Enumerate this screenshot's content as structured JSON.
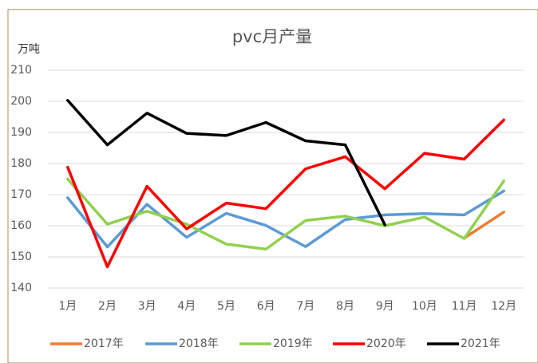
{
  "chart_data": {
    "type": "line",
    "title": "pvc月产量",
    "y_label": "万吨",
    "categories": [
      "1月",
      "2月",
      "3月",
      "4月",
      "5月",
      "6月",
      "7月",
      "8月",
      "9月",
      "10月",
      "11月",
      "12月"
    ],
    "series": [
      {
        "name": "2017年",
        "color": "#ed7d31",
        "values": [
          null,
          null,
          null,
          null,
          null,
          null,
          null,
          null,
          null,
          null,
          156,
          164.4
        ]
      },
      {
        "name": "2018年",
        "color": "#5b9bd5",
        "values": [
          169,
          153.2,
          166.9,
          156.3,
          164,
          160.1,
          153.3,
          162,
          163.5,
          163.9,
          163.5,
          171.2
        ]
      },
      {
        "name": "2019年",
        "color": "#92d050",
        "values": [
          175,
          160.5,
          164.7,
          160.5,
          154.1,
          152.5,
          161.7,
          163.1,
          160,
          162.8,
          155.9,
          174.4
        ]
      },
      {
        "name": "2020年",
        "color": "#ff0000",
        "values": [
          178.8,
          146.8,
          172.7,
          159,
          167.3,
          165.5,
          178.3,
          182.2,
          171.9,
          183.3,
          181.4,
          194
        ]
      },
      {
        "name": "2021年",
        "color": "#000000",
        "values": [
          200.3,
          186,
          196.2,
          189.7,
          189,
          193.2,
          187.3,
          186,
          160.3,
          null,
          null,
          null
        ]
      }
    ],
    "ylim": [
      140,
      210
    ],
    "yticks": [
      140,
      150,
      160,
      170,
      180,
      190,
      200,
      210
    ],
    "grid": true,
    "legend": "bottom"
  }
}
